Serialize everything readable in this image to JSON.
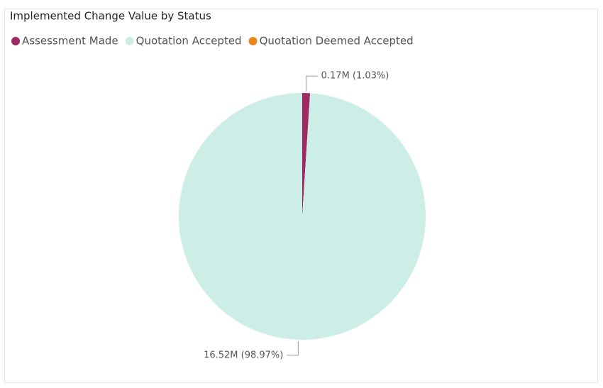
{
  "chart_data": {
    "type": "pie",
    "title": "Implemented Change Value by Status",
    "categories": [
      "Assessment Made",
      "Quotation Accepted",
      "Quotation Deemed Accepted"
    ],
    "values": [
      0.17,
      16.52,
      0
    ],
    "value_labels": [
      "0.17M (1.03%)",
      "16.52M (98.97%)",
      null
    ],
    "colors": [
      "#9c2a63",
      "#cdeee7",
      "#e8891e"
    ],
    "legend": "top-left"
  }
}
